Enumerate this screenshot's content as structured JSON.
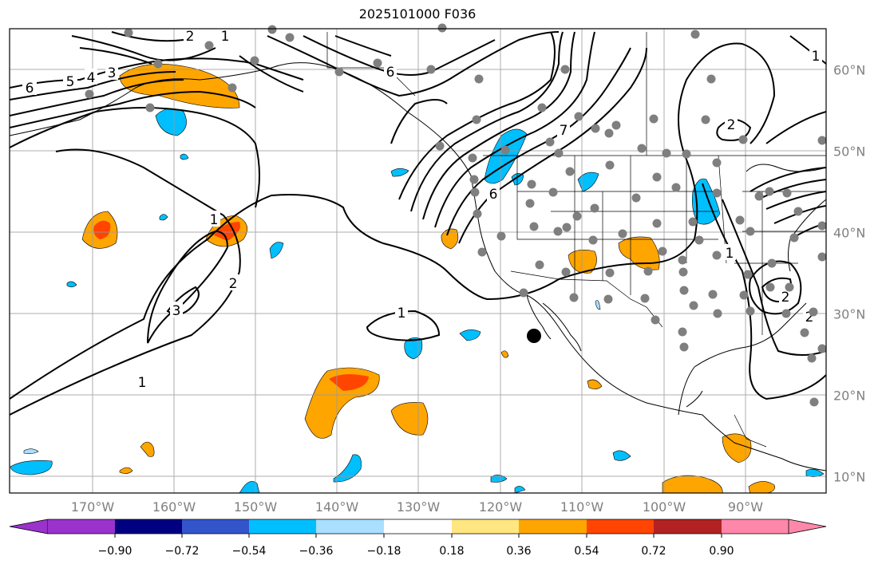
{
  "title": "2025101000 F036",
  "map": {
    "projection": "PlateCarree",
    "lon_labels": [
      "170°W",
      "160°W",
      "150°W",
      "140°W",
      "130°W",
      "120°W",
      "110°W",
      "100°W",
      "90°W"
    ],
    "lat_labels": [
      "60°N",
      "50°N",
      "40°N",
      "30°N",
      "20°N",
      "10°N"
    ],
    "contour_labels": [
      "6",
      "5",
      "4",
      "3",
      "2",
      "1",
      "1",
      "2",
      "3",
      "1",
      "1",
      "6",
      "7",
      "6",
      "1",
      "2",
      "2",
      "1",
      "2"
    ],
    "marker": {
      "type": "circle",
      "color": "#000000",
      "lon": -115.8,
      "lat": 27.3
    }
  },
  "colorbar": {
    "ticks": [
      "−0.90",
      "−0.72",
      "−0.54",
      "−0.36",
      "−0.18",
      "0.18",
      "0.36",
      "0.54",
      "0.72",
      "0.90"
    ],
    "colors": [
      "#9933cc",
      "#000080",
      "#3355cc",
      "#00bfff",
      "#aadfff",
      "#ffffff",
      "#ffe680",
      "#ffa500",
      "#ff4500",
      "#b22222",
      "#ff88aa"
    ]
  }
}
